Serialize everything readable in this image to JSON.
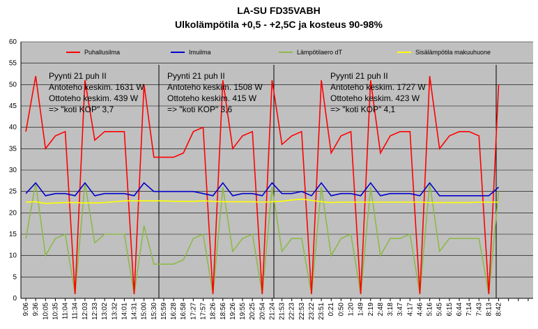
{
  "chart_data": {
    "type": "line",
    "title": "LA-SU FD35VABH",
    "subtitle": "Ulkolämpötila +0,5 - +2,5C ja kosteus 90-98%",
    "categories": [
      "9:06",
      "9:36",
      "10:05",
      "10:35",
      "11:04",
      "11:34",
      "12:03",
      "12:33",
      "13:02",
      "13:32",
      "14:01",
      "14:31",
      "15:00",
      "15:30",
      "15:59",
      "16:28",
      "16:58",
      "17:27",
      "17:57",
      "18:26",
      "18:56",
      "19:26",
      "19:55",
      "20:25",
      "20:54",
      "21:24",
      "21:53",
      "22:23",
      "22:53",
      "23:22",
      "23:51",
      "0:21",
      "0:50",
      "1:20",
      "1:49",
      "2:19",
      "2:48",
      "3:18",
      "3:47",
      "4:17",
      "4:46",
      "5:16",
      "5:45",
      "6:15",
      "6:44",
      "7:14",
      "7:43",
      "8:13",
      "8:42",
      null,
      null,
      null
    ],
    "series": [
      {
        "name": "Puhallusilma",
        "color": "#ff0000",
        "values": [
          39,
          52,
          35,
          38,
          39,
          1,
          51,
          37,
          39,
          39,
          39,
          1,
          50,
          33,
          33,
          33,
          34,
          39,
          40,
          1,
          51,
          35,
          38,
          39,
          1,
          51,
          36,
          38,
          39,
          1,
          51,
          34,
          38,
          39,
          1,
          51,
          34,
          38,
          39,
          39,
          1,
          52,
          35,
          38,
          39,
          39,
          38,
          1,
          50,
          null,
          null,
          null
        ]
      },
      {
        "name": "Imuilma",
        "color": "#0000cc",
        "values": [
          24.5,
          27,
          24,
          24.5,
          24.5,
          24,
          27,
          24,
          24.5,
          24.5,
          24.5,
          24,
          27,
          25,
          25,
          25,
          25,
          25,
          24.5,
          24,
          27,
          24,
          24.5,
          24.5,
          24,
          27,
          24.5,
          24.5,
          25,
          24,
          27,
          24,
          24.5,
          24.5,
          24,
          27,
          24,
          24.5,
          24.5,
          24.5,
          24,
          27,
          24,
          24,
          24,
          24,
          24,
          24,
          26,
          null,
          null,
          null
        ]
      },
      {
        "name": "Lämpötilaero dT",
        "color": "#8db94a",
        "values": [
          14,
          27,
          10,
          14,
          15,
          1,
          27,
          13,
          15,
          15,
          15,
          1,
          17,
          8,
          8,
          8,
          9,
          14,
          15,
          1,
          26,
          11,
          14,
          15,
          1,
          26,
          11,
          14,
          14,
          1,
          26,
          10,
          14,
          15,
          1,
          26,
          10,
          14,
          14,
          15,
          1,
          27,
          11,
          14,
          14,
          14,
          14,
          1,
          25,
          null,
          null,
          null
        ]
      },
      {
        "name": "Sisälämpötila makuuhuone",
        "color": "#ffff00",
        "values": [
          22.5,
          22.6,
          22.2,
          22.3,
          22.4,
          22.4,
          22.3,
          22.3,
          22.4,
          22.6,
          22.8,
          22.8,
          22.8,
          22.8,
          22.8,
          22.7,
          22.7,
          22.7,
          22.8,
          22.7,
          22.6,
          22.6,
          22.6,
          22.6,
          22.5,
          22.6,
          22.7,
          23,
          23.2,
          22.9,
          22.6,
          22.4,
          22.5,
          22.5,
          22.5,
          22.5,
          22.5,
          22.5,
          22.5,
          22.5,
          22.5,
          22.4,
          22.4,
          22.4,
          22.4,
          22.4,
          22.5,
          22.5,
          22.5,
          null,
          null,
          null
        ]
      }
    ],
    "annotations": [
      "Pyynti 21 puh II",
      "Antoteho keskim. 1631 W",
      "Ottoteho keskim. 439 W",
      "=> \"koti KOP\" 3,7",
      "Pyynti 21 puh II",
      "Antoteho keskim. 1508 W",
      "Ottoteho keskim. 415 W",
      "=> \"koti KOP\" 3,6",
      "Pyynti 21 puh II",
      "Antoteho keskim. 1727 W",
      "Ottoteho keskim. 423 W",
      "=> \"koti KOP\" 4,1"
    ],
    "ylim": [
      0,
      60
    ],
    "yticks": [
      0,
      5,
      10,
      15,
      20,
      25,
      30,
      35,
      40,
      45,
      50,
      55,
      60
    ],
    "grid": true,
    "legend": "top"
  }
}
